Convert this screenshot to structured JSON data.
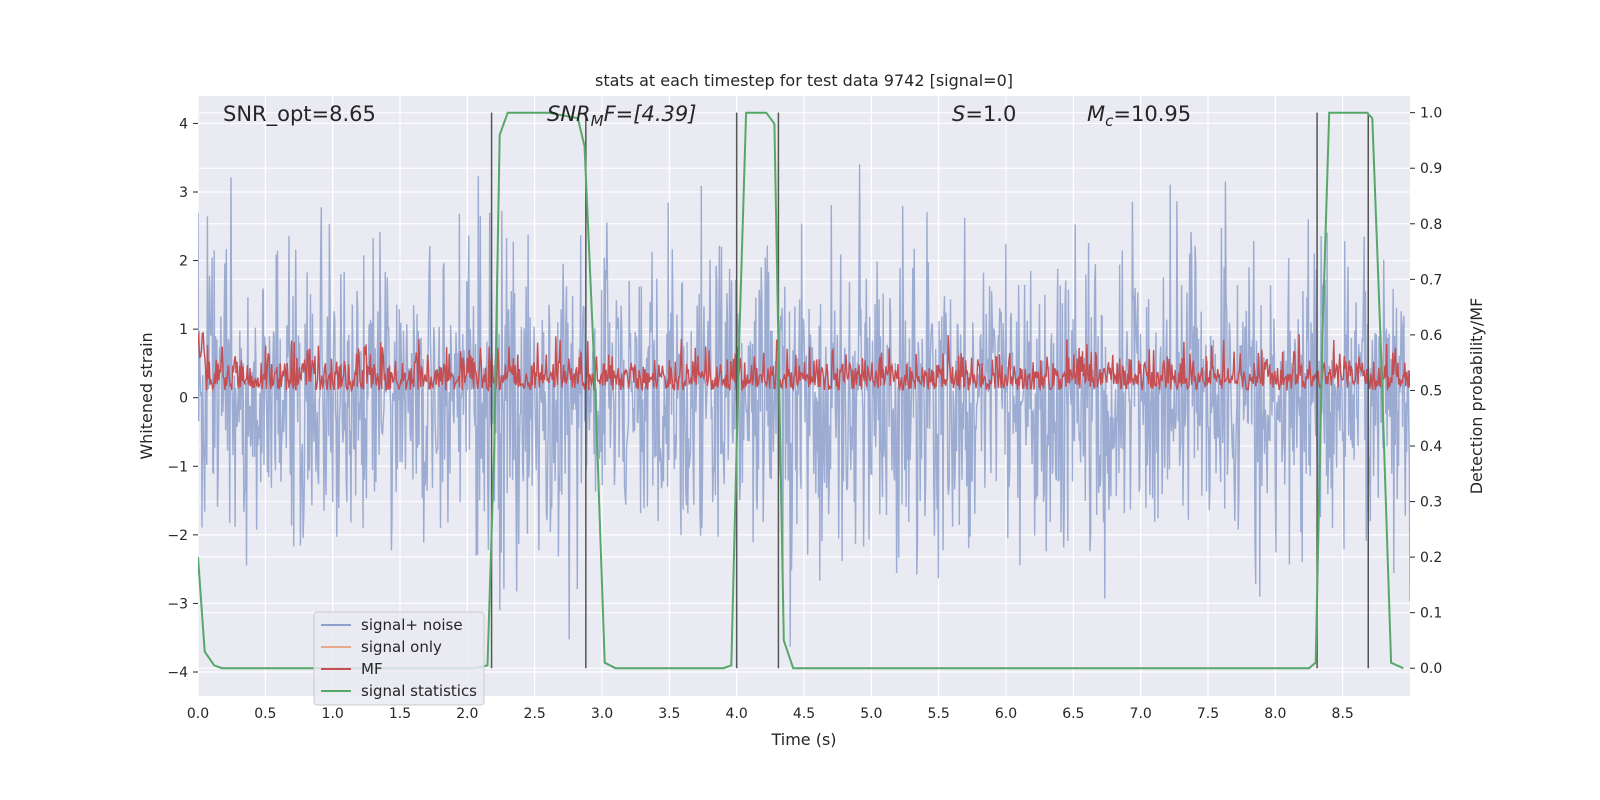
{
  "chart_data": {
    "type": "line",
    "title": "stats at each timestep for test data 9742 [signal=0]",
    "xlabel": "Time (s)",
    "ylabel_left": "Whitened strain",
    "ylabel_right": "Detection probability/MF",
    "xlim": [
      0.0,
      9.0
    ],
    "ylim_left": [
      -4.35,
      4.4
    ],
    "ylim_right": [
      -0.05,
      1.03
    ],
    "x_ticks": [
      "0.0",
      "0.5",
      "1.0",
      "1.5",
      "2.0",
      "2.5",
      "3.0",
      "3.5",
      "4.0",
      "4.5",
      "5.0",
      "5.5",
      "6.0",
      "6.5",
      "7.0",
      "7.5",
      "8.0",
      "8.5"
    ],
    "y_ticks_left": [
      "4",
      "3",
      "2",
      "1",
      "0",
      "−1",
      "−2",
      "−3",
      "−4"
    ],
    "y_ticks_right": [
      "1.0",
      "0.9",
      "0.8",
      "0.7",
      "0.6",
      "0.5",
      "0.4",
      "0.3",
      "0.2",
      "0.1",
      "0.0"
    ],
    "annotations": {
      "snr_opt": "SNR_opt=8.65",
      "snr_mf_prefix": "SNR",
      "snr_mf_sub": "M",
      "snr_mf_suffix": "F=[4.39]",
      "s_label": "S",
      "s_value": "=1.0",
      "mc_label": "M",
      "mc_sub": "c",
      "mc_value": "=10.95"
    },
    "vertical_lines": [
      2.18,
      2.88,
      4.0,
      4.31,
      8.31,
      8.69
    ],
    "series": [
      {
        "name": "signal+ noise",
        "color": "#8da0cb",
        "axis": "left",
        "description": "noisy whitened strain, approx range -3.7 to 4.0"
      },
      {
        "name": "signal only",
        "color": "#e8a98a",
        "axis": "left",
        "values": []
      },
      {
        "name": "MF",
        "color": "#c44e52",
        "axis": "right",
        "range": [
          0.5,
          0.62
        ]
      },
      {
        "name": "signal statistics",
        "color": "#55a868",
        "axis": "right",
        "x": [
          0.0,
          0.05,
          0.12,
          0.18,
          0.3,
          2.05,
          2.15,
          2.2,
          2.24,
          2.3,
          2.6,
          2.82,
          2.87,
          2.95,
          3.02,
          3.1,
          3.9,
          3.96,
          4.02,
          4.07,
          4.22,
          4.28,
          4.35,
          4.42,
          4.6,
          8.25,
          8.3,
          8.35,
          8.4,
          8.68,
          8.72,
          8.78,
          8.86,
          8.95
        ],
        "values": [
          0.2,
          0.03,
          0.005,
          0.0,
          0.0,
          0.0,
          0.005,
          0.4,
          0.96,
          1.0,
          1.0,
          0.99,
          0.94,
          0.5,
          0.01,
          0.0,
          0.0,
          0.005,
          0.6,
          1.0,
          1.0,
          0.98,
          0.05,
          0.0,
          0.0,
          0.0,
          0.01,
          0.6,
          1.0,
          1.0,
          0.99,
          0.6,
          0.01,
          0.0
        ]
      }
    ],
    "legend_position": "lower-left"
  },
  "colors": {
    "axes_bg": "#eaeaf2",
    "grid": "#ffffff",
    "noise": "#8da0cb",
    "signal_only": "#e8a98a",
    "mf": "#c44e52",
    "stats": "#55a868",
    "vline": "#555555"
  }
}
